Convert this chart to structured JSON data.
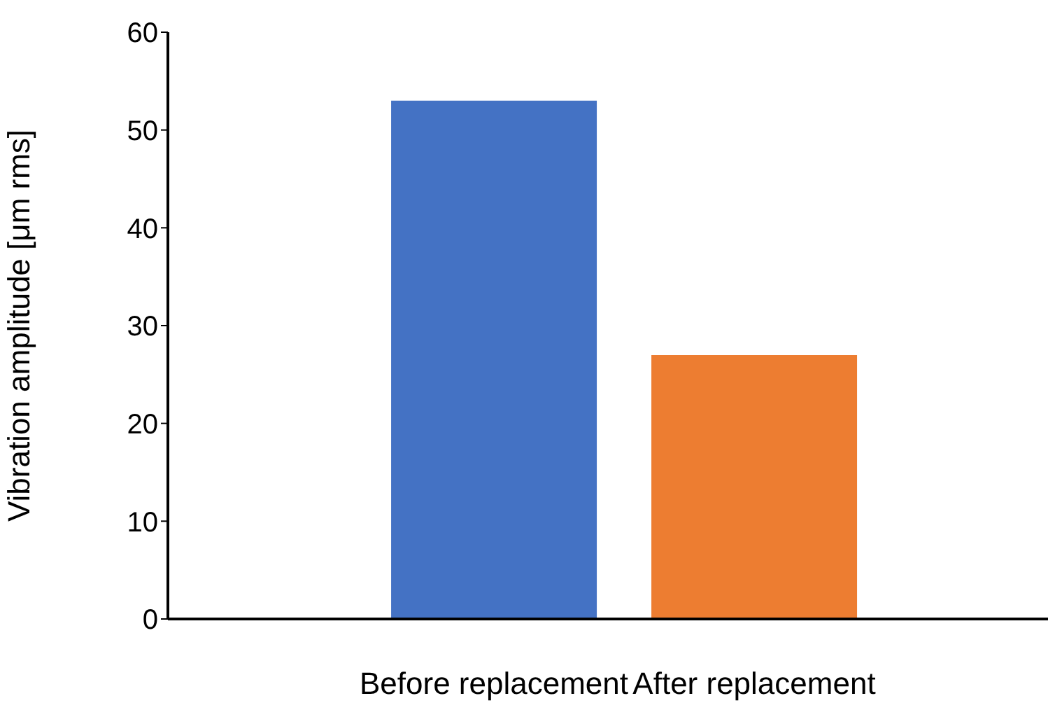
{
  "chart_data": {
    "type": "bar",
    "ylabel": "Vibration amplitude [μm rms]",
    "categories": [
      "Before replacement",
      "After replacement"
    ],
    "values": [
      53,
      27
    ],
    "colors": [
      "#4472c4",
      "#ed7d31"
    ],
    "ylim": [
      0,
      60
    ],
    "yticks": [
      0,
      10,
      20,
      30,
      40,
      50,
      60
    ],
    "grid": false,
    "legend": false
  }
}
